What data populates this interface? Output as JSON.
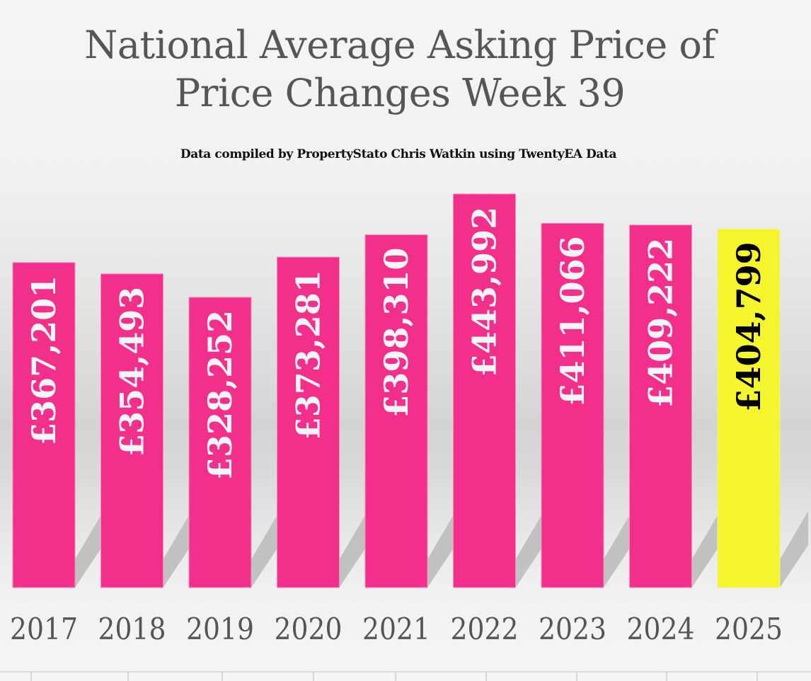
{
  "chart_data": {
    "type": "bar",
    "title": "National Average Asking Price of Price Changes Week 39",
    "title_lines": [
      "National Average Asking Price of",
      "Price Changes Week 39"
    ],
    "subtitle": "Data compiled by PropertyStato Chris Watkin using TwentyEA Data",
    "xlabel": "",
    "ylabel": "",
    "categories": [
      "2017",
      "2018",
      "2019",
      "2020",
      "2021",
      "2022",
      "2023",
      "2024",
      "2025"
    ],
    "values": [
      367201,
      354493,
      328252,
      373281,
      398310,
      443992,
      411066,
      409222,
      404799
    ],
    "data_labels": [
      "£367,201",
      "£354,493",
      "£328,252",
      "£373,281",
      "£398,310",
      "£443,992",
      "£411,066",
      "£409,222",
      "£404,799"
    ],
    "ylim": [
      0,
      465000
    ],
    "grid": false,
    "legend": "none",
    "colors": {
      "default_bar": "#f2308c",
      "highlight_bar": "#f5f52d",
      "default_label": "#f5f5f5",
      "highlight_label": "#000000",
      "axis_text": "#555555"
    },
    "highlight_index": 8
  }
}
